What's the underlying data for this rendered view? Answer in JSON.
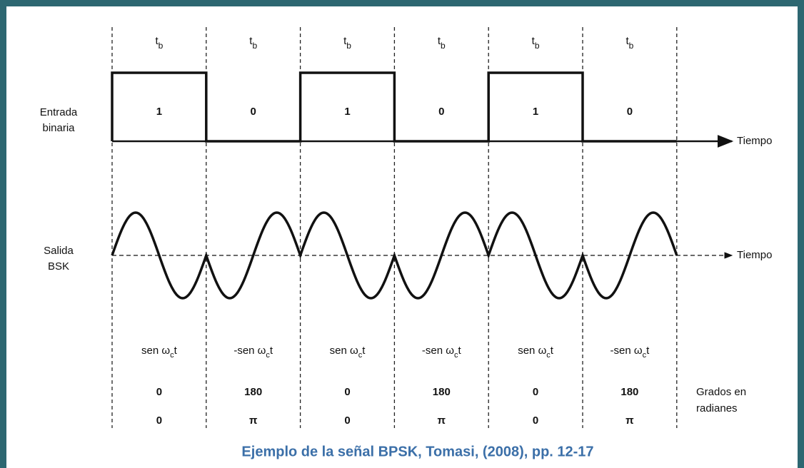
{
  "input_label": [
    "Entrada",
    "binaria"
  ],
  "output_label": [
    "Salida",
    "BSK"
  ],
  "time_label_top": "Tiempo",
  "time_label_bottom": "Tiempo",
  "degrees_label": [
    "Grados en",
    "radianes"
  ],
  "columns": [
    {
      "period": {
        "main": "t",
        "sub": "b"
      },
      "bit": "1",
      "phase": {
        "pre": "sen ω",
        "sub": "c",
        "post": "t"
      },
      "degrees": "0",
      "radians": "0"
    },
    {
      "period": {
        "main": "t",
        "sub": "b"
      },
      "bit": "0",
      "phase": {
        "pre": "-sen ω",
        "sub": "c",
        "post": "t"
      },
      "degrees": "180",
      "radians": "π"
    },
    {
      "period": {
        "main": "t",
        "sub": "b"
      },
      "bit": "1",
      "phase": {
        "pre": "sen ω",
        "sub": "c",
        "post": "t"
      },
      "degrees": "0",
      "radians": "0"
    },
    {
      "period": {
        "main": "t",
        "sub": "b"
      },
      "bit": "0",
      "phase": {
        "pre": "-sen ω",
        "sub": "c",
        "post": "t"
      },
      "degrees": "180",
      "radians": "π"
    },
    {
      "period": {
        "main": "t",
        "sub": "b"
      },
      "bit": "1",
      "phase": {
        "pre": "sen ω",
        "sub": "c",
        "post": "t"
      },
      "degrees": "0",
      "radians": "0"
    },
    {
      "period": {
        "main": "t",
        "sub": "b"
      },
      "bit": "0",
      "phase": {
        "pre": "-sen ω",
        "sub": "c",
        "post": "t"
      },
      "degrees": "180",
      "radians": "π"
    }
  ],
  "caption": "Ejemplo de la señal BPSK, Tomasi, (2008), pp. 12-17"
}
